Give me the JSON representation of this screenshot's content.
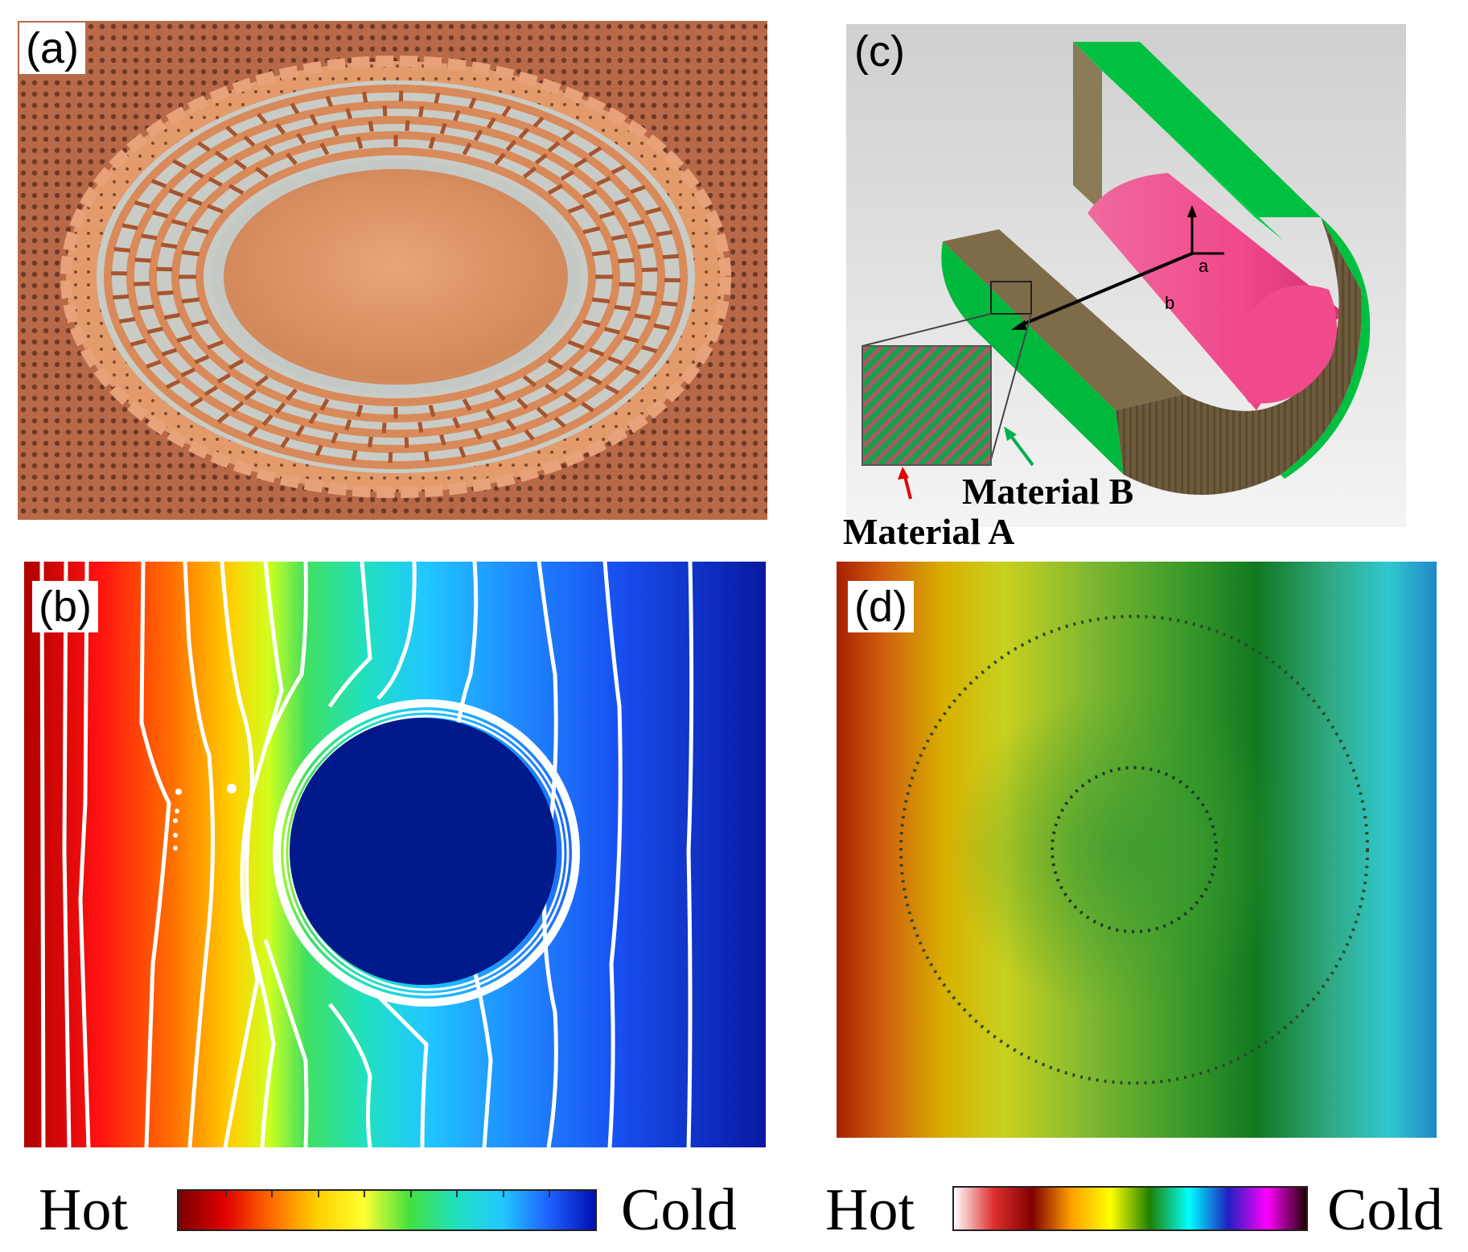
{
  "panels": {
    "a": {
      "label": "(a)"
    },
    "b": {
      "label": "(b)"
    },
    "c": {
      "label": "(c)",
      "dim_a": "a",
      "dim_b": "b",
      "material_a": "Material A",
      "material_b": "Material B"
    },
    "d": {
      "label": "(d)"
    }
  },
  "colorbars": {
    "left": {
      "hot_label": "Hot",
      "cold_label": "Cold",
      "colors": [
        "#7a0000",
        "#e00000",
        "#ff6a00",
        "#ffd000",
        "#ffff30",
        "#40e040",
        "#20e0c0",
        "#20c8ff",
        "#2060ff",
        "#0010b0"
      ]
    },
    "right": {
      "hot_label": "Hot",
      "cold_label": "Cold",
      "colors": [
        "#ffffff",
        "#e03030",
        "#800000",
        "#ffa000",
        "#ffff00",
        "#208000",
        "#00ffff",
        "#2020c0",
        "#ff00ff",
        "#200000"
      ]
    }
  },
  "colors": {
    "copper": "#d9885a",
    "green_material": "#00c040",
    "brown_material": "#7a6a45",
    "pink_core": "#f0508a",
    "cloak_core": "#001a8c"
  }
}
